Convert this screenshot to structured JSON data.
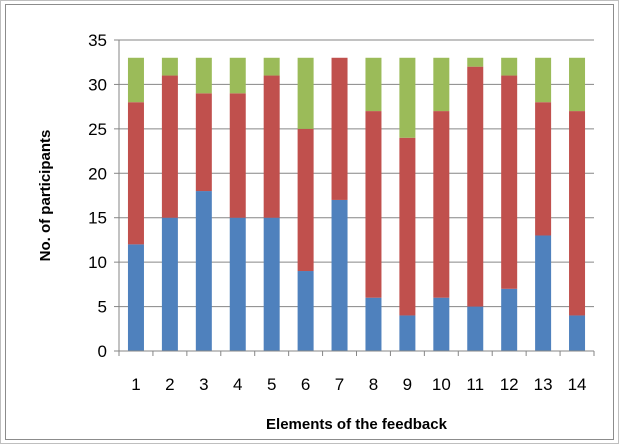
{
  "chart_data": {
    "type": "bar",
    "stacked": true,
    "title": "",
    "xlabel": "Elements of the feedback",
    "ylabel": "No. of participants",
    "categories": [
      "1",
      "2",
      "3",
      "4",
      "5",
      "6",
      "7",
      "8",
      "9",
      "10",
      "11",
      "12",
      "13",
      "14"
    ],
    "series": [
      {
        "color": "#4f81bd",
        "values": [
          12,
          15,
          18,
          15,
          15,
          9,
          17,
          6,
          4,
          6,
          5,
          7,
          13,
          4
        ]
      },
      {
        "color": "#c0504d",
        "values": [
          16,
          16,
          11,
          14,
          16,
          16,
          16,
          21,
          20,
          21,
          27,
          24,
          15,
          23
        ]
      },
      {
        "color": "#9bbb59",
        "values": [
          5,
          2,
          4,
          4,
          2,
          8,
          0,
          6,
          9,
          6,
          1,
          2,
          5,
          6
        ]
      }
    ],
    "ylim": [
      0,
      35
    ],
    "yticks": [
      0,
      5,
      10,
      15,
      20,
      25,
      30,
      35
    ],
    "grid": true,
    "legend": "none"
  }
}
